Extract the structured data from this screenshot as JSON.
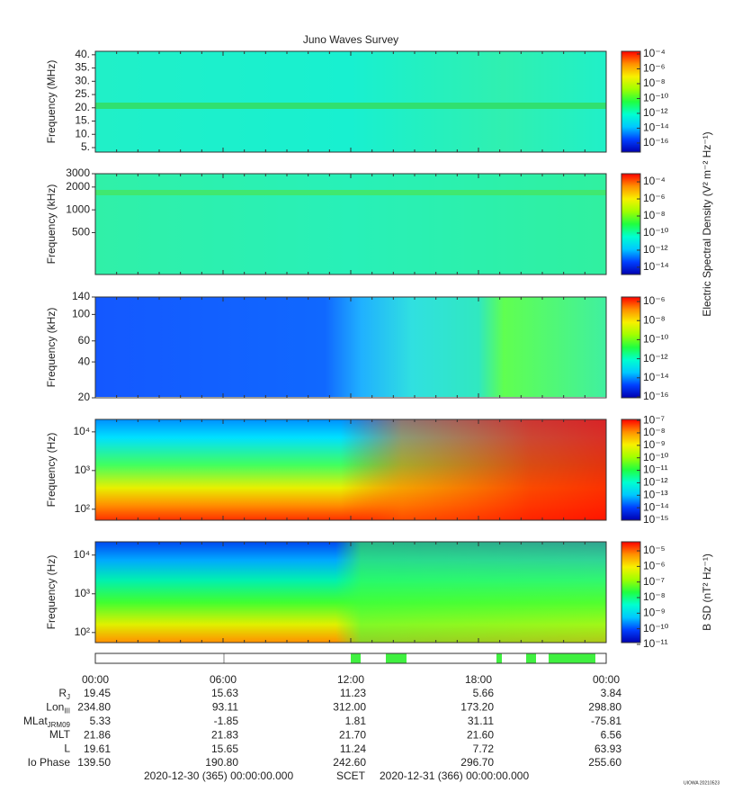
{
  "title": "Juno Waves Survey",
  "colormap": [
    "#0000b0",
    "#0040ff",
    "#00c8ff",
    "#00ffd0",
    "#20ff40",
    "#a0ff00",
    "#f8f000",
    "#ff9000",
    "#ff0000"
  ],
  "xlim": [
    0,
    24
  ],
  "xticks": [
    {
      "value": 0,
      "label": "00:00"
    },
    {
      "value": 6,
      "label": "06:00"
    },
    {
      "value": 12,
      "label": "12:00"
    },
    {
      "value": 18,
      "label": "18:00"
    },
    {
      "value": 24,
      "label": "00:00"
    }
  ],
  "xminorticks": [
    1,
    2,
    3,
    4,
    5,
    7,
    8,
    9,
    10,
    11,
    13,
    14,
    15,
    16,
    17,
    19,
    20,
    21,
    22,
    23
  ],
  "chart_data": [
    {
      "type": "spectrogram",
      "ylabel": "Frequency (MHz)",
      "yscale": "linear",
      "ylim": [
        3.3,
        41.3
      ],
      "yticks": [
        {
          "value": 5,
          "label": "5."
        },
        {
          "value": 10,
          "label": "10."
        },
        {
          "value": 15,
          "label": "15."
        },
        {
          "value": 20,
          "label": "20."
        },
        {
          "value": 25,
          "label": "25."
        },
        {
          "value": 30,
          "label": "30."
        },
        {
          "value": 35,
          "label": "35."
        },
        {
          "value": 40,
          "label": "40."
        }
      ],
      "cscale": "log",
      "clim": [
        6e-18,
        0.00023
      ],
      "cticks": [
        {
          "value": 1e-16,
          "label": "10⁻¹⁶"
        },
        {
          "value": 1e-14,
          "label": "10⁻¹⁴"
        },
        {
          "value": 1e-12,
          "label": "10⁻¹²"
        },
        {
          "value": 1e-10,
          "label": "10⁻¹⁰"
        },
        {
          "value": 1e-08,
          "label": "10⁻⁸"
        },
        {
          "value": 1e-06,
          "label": "10⁻⁶"
        },
        {
          "value": 0.0001,
          "label": "10⁻⁴"
        }
      ]
    },
    {
      "type": "spectrogram",
      "ylabel": "Frequency (kHz)",
      "yscale": "log",
      "ylim": [
        140,
        3000
      ],
      "yticks": [
        500,
        1000,
        2000,
        3000
      ],
      "cscale": "log",
      "clim": [
        1.4e-15,
        0.0009
      ],
      "cticks": [
        {
          "value": 1e-14,
          "label": "10⁻¹⁴"
        },
        {
          "value": 1e-12,
          "label": "10⁻¹²"
        },
        {
          "value": 1e-10,
          "label": "10⁻¹⁰"
        },
        {
          "value": 1e-08,
          "label": "10⁻⁸"
        },
        {
          "value": 1e-06,
          "label": "10⁻⁶"
        },
        {
          "value": 0.0001,
          "label": "10⁻⁴"
        }
      ],
      "clabel": "Electric Spectral Density (V² m⁻² Hz⁻¹)"
    },
    {
      "type": "spectrogram",
      "ylabel": "Frequency (kHz)",
      "yscale": "log",
      "ylim": [
        20,
        140
      ],
      "yticks": [
        20,
        40,
        60,
        100,
        140
      ],
      "cscale": "log",
      "clim": [
        8e-17,
        3e-06
      ],
      "cticks": [
        {
          "value": 1e-16,
          "label": "10⁻¹⁶"
        },
        {
          "value": 1e-14,
          "label": "10⁻¹⁴"
        },
        {
          "value": 1e-12,
          "label": "10⁻¹²"
        },
        {
          "value": 1e-10,
          "label": "10⁻¹⁰"
        },
        {
          "value": 1e-08,
          "label": "10⁻⁸"
        },
        {
          "value": 1e-06,
          "label": "10⁻⁶"
        }
      ]
    },
    {
      "type": "spectrogram",
      "ylabel": "Frequency (Hz)",
      "yscale": "log",
      "ylim": [
        52,
        21000
      ],
      "yticks": [
        {
          "value": 100,
          "label": "10²"
        },
        {
          "value": 1000,
          "label": "10³"
        },
        {
          "value": 10000,
          "label": "10⁴"
        }
      ],
      "cscale": "log",
      "clim": [
        1e-15,
        1.2e-07
      ],
      "cticks": [
        {
          "value": 1e-15,
          "label": "10⁻¹⁵"
        },
        {
          "value": 1e-14,
          "label": "10⁻¹⁴"
        },
        {
          "value": 1e-13,
          "label": "10⁻¹³"
        },
        {
          "value": 1e-12,
          "label": "10⁻¹²"
        },
        {
          "value": 1e-11,
          "label": "10⁻¹¹"
        },
        {
          "value": 1e-10,
          "label": "10⁻¹⁰"
        },
        {
          "value": 1e-09,
          "label": "10⁻⁹"
        },
        {
          "value": 1e-08,
          "label": "10⁻⁸"
        },
        {
          "value": 1e-07,
          "label": "10⁻⁷"
        }
      ]
    },
    {
      "type": "spectrogram",
      "ylabel": "Frequency (Hz)",
      "yscale": "log",
      "ylim": [
        55,
        22000
      ],
      "yticks": [
        {
          "value": 100,
          "label": "10²"
        },
        {
          "value": 1000,
          "label": "10³"
        },
        {
          "value": 10000,
          "label": "10⁴"
        }
      ],
      "cscale": "log",
      "clim": [
        1.3e-11,
        3.8e-05
      ],
      "cticks": [
        {
          "value": 1e-11,
          "label": "10⁻¹¹"
        },
        {
          "value": 1e-10,
          "label": "10⁻¹⁰"
        },
        {
          "value": 1e-09,
          "label": "10⁻⁹"
        },
        {
          "value": 1e-08,
          "label": "10⁻⁸"
        },
        {
          "value": 1e-07,
          "label": "10⁻⁷"
        },
        {
          "value": 1e-06,
          "label": "10⁻⁶"
        },
        {
          "value": 1e-05,
          "label": "10⁻⁵"
        }
      ],
      "clabel": "B SD (nT² Hz⁻¹)"
    }
  ],
  "ephemeris": [
    {
      "label": "R",
      "sub": "J",
      "values": [
        "19.45",
        "15.63",
        "11.23",
        "5.66",
        "3.84"
      ]
    },
    {
      "label": "Lon",
      "sub": "III",
      "values": [
        "234.80",
        "93.11",
        "312.00",
        "173.20",
        "298.80"
      ]
    },
    {
      "label": "MLat",
      "sub": "JRM09",
      "values": [
        "5.33",
        "-1.85",
        "1.81",
        "31.11",
        "-75.81"
      ]
    },
    {
      "label": "MLT",
      "values": [
        "21.86",
        "21.83",
        "21.70",
        "21.60",
        "6.56"
      ]
    },
    {
      "label": "L",
      "values": [
        "19.61",
        "15.65",
        "11.24",
        "7.72",
        "63.93"
      ]
    },
    {
      "label": "Io Phase",
      "values": [
        "139.50",
        "190.80",
        "242.60",
        "296.70",
        "255.60"
      ]
    }
  ],
  "footer": {
    "start": "2020-12-30 (365) 00:00:00.000",
    "scet": "SCET",
    "end": "2020-12-31 (366) 00:00:00.000",
    "credit": "UIOWA 20210523"
  }
}
